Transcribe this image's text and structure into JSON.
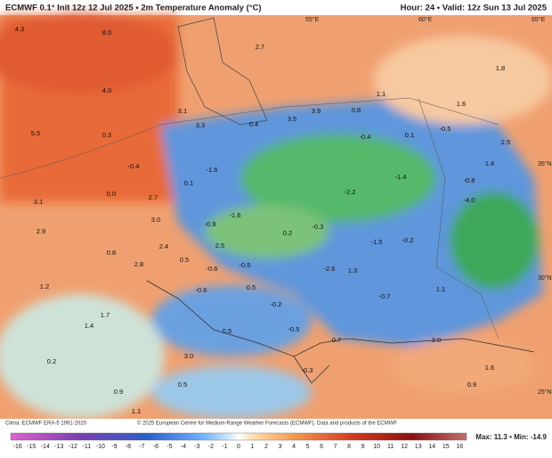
{
  "header": {
    "title": "ECMWF 0.1° Init 12z 12 Jul 2025 • 2m Temperature Anomaly (°C)",
    "valid": "Hour: 24 • Valid: 12z Sun 13 Jul 2025"
  },
  "map": {
    "grid_labels": [
      "55°E",
      "60°E",
      "65°E",
      "35°N",
      "30°N",
      "25°N"
    ],
    "values": [
      "2.7",
      "1.8",
      "1.6",
      "1.1",
      "3.9",
      "3.1",
      "3.3",
      "0.4",
      "3.5",
      "0.8",
      "-0.4",
      "0.1",
      "-0.5",
      "2.5",
      "1.4",
      "0.3",
      "5.5",
      "-0.4",
      "-1.6",
      "0.1",
      "-1.4",
      "-0.8",
      "0.0",
      "2.7",
      "3.1",
      "-1.6",
      "-2.2",
      "-4.0",
      "3.0",
      "2.9",
      "-0.9",
      "0.2",
      "-0.3",
      "2.4",
      "2.5",
      "0.8",
      "2.8",
      "0.5",
      "-0.6",
      "-0.5",
      "-2.6",
      "1.3",
      "-1.5",
      "-0.2",
      "1.2",
      "0.5",
      "-0.6",
      "-0.7",
      "1.1",
      "-0.2",
      "1.7",
      "1.4",
      "-0.5",
      "0.7",
      "3.0",
      "0.2",
      "3.0",
      "0.5",
      "-0.3",
      "1.6",
      "0.9",
      "0.5",
      "1.1",
      "0.9",
      "8.0",
      "4.3",
      "4.0"
    ]
  },
  "footer": {
    "clima": "Clima: ECMWF ERA-5 1991-2020",
    "credit": "© 2025 European Centre for Medium-Range Weather Forecasts (ECMWF). Data and products of the ECMWF",
    "colorbar": [
      -16,
      -15,
      -14,
      -13,
      -12,
      -11,
      -10,
      -9,
      -8,
      -7,
      -6,
      -5,
      -4,
      -3,
      -2,
      -1,
      0,
      1,
      2,
      3,
      4,
      5,
      6,
      7,
      8,
      9,
      10,
      11,
      12,
      13,
      14,
      15,
      16
    ],
    "maxmin": "Max: 11.3 • Min: -14.9"
  }
}
